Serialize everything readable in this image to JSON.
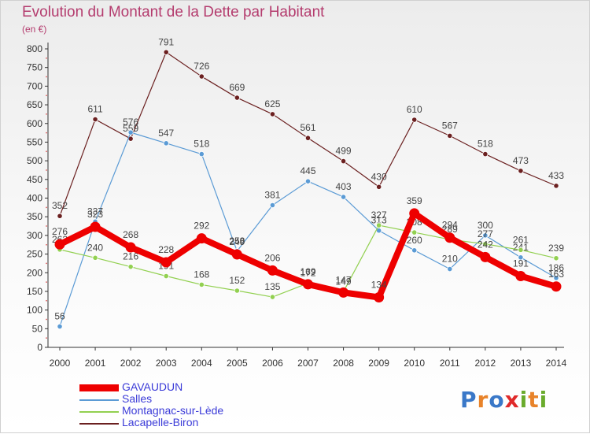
{
  "title": "Evolution du Montant de la Dette par Habitant",
  "subtitle": "(en €)",
  "logo": {
    "text": "Proxiti",
    "letters": [
      "P",
      "r",
      "o",
      "x",
      "i",
      "t",
      "i"
    ],
    "colors": [
      "#3a78c8",
      "#e8832a",
      "#3a78c8",
      "#e02a2a",
      "#6aab2c",
      "#e8832a",
      "#6aab2c"
    ]
  },
  "chart_data": {
    "type": "line",
    "x": [
      2000,
      2001,
      2002,
      2003,
      2004,
      2005,
      2006,
      2007,
      2008,
      2009,
      2010,
      2011,
      2012,
      2013,
      2014
    ],
    "ylim": [
      0,
      800
    ],
    "yticks": [
      0,
      50,
      100,
      150,
      200,
      250,
      300,
      350,
      400,
      450,
      500,
      550,
      600,
      650,
      700,
      750,
      800
    ],
    "grid": false,
    "legend_position": "bottom-left",
    "series": [
      {
        "name": "GAVAUDUN",
        "color": "#ee0000",
        "values": [
          276,
          323,
          268,
          228,
          292,
          249,
          206,
          169,
          147,
          134,
          359,
          294,
          242,
          191,
          163
        ]
      },
      {
        "name": "Salles",
        "color": "#5b9bd5",
        "values": [
          56,
          337,
          576,
          547,
          518,
          258,
          381,
          445,
          403,
          313,
          260,
          210,
          300,
          241,
          186
        ]
      },
      {
        "name": "Montagnac-sur-Lède",
        "color": "#92d050",
        "values": [
          262,
          240,
          216,
          191,
          168,
          152,
          135,
          172,
          149,
          327,
          308,
          289,
          277,
          261,
          239
        ]
      },
      {
        "name": "Lacapelle-Biron",
        "color": "#6b2020",
        "values": [
          352,
          611,
          559,
          791,
          726,
          669,
          625,
          561,
          499,
          430,
          610,
          567,
          518,
          473,
          433
        ]
      }
    ]
  }
}
